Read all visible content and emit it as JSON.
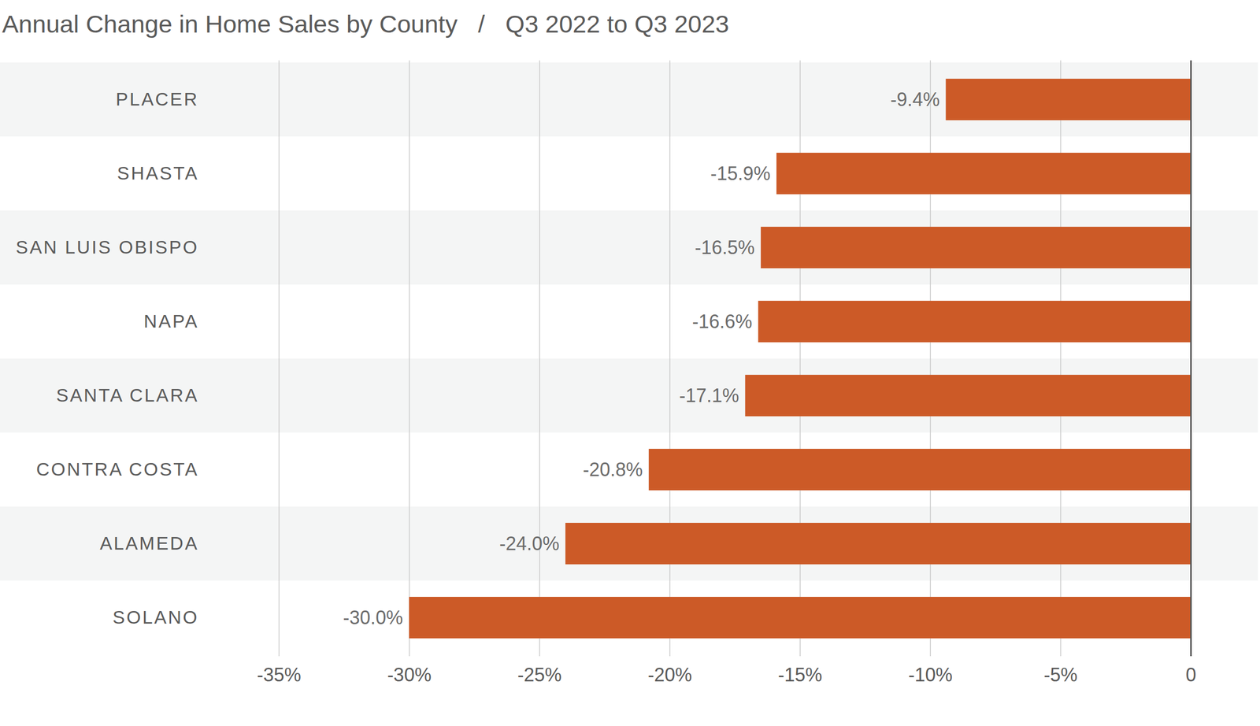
{
  "chart_data": {
    "type": "bar",
    "orientation": "horizontal",
    "title": "Annual Change in Home Sales by County   /   Q3 2022 to Q3 2023",
    "categories": [
      "PLACER",
      "SHASTA",
      "SAN LUIS OBISPO",
      "NAPA",
      "SANTA CLARA",
      "CONTRA COSTA",
      "ALAMEDA",
      "SOLANO"
    ],
    "values": [
      -9.4,
      -15.9,
      -16.5,
      -16.6,
      -17.1,
      -20.8,
      -24.0,
      -30.0
    ],
    "value_labels": [
      "-9.4%",
      "-15.9%",
      "-16.5%",
      "-16.6%",
      "-17.1%",
      "-20.8%",
      "-24.0%",
      "-30.0%"
    ],
    "color": "#cc5a27",
    "xlim": [
      -35,
      0
    ],
    "xticks": [
      {
        "value": -35,
        "label": "-35%"
      },
      {
        "value": -30,
        "label": "-30%"
      },
      {
        "value": -25,
        "label": "-25%"
      },
      {
        "value": -20,
        "label": "-20%"
      },
      {
        "value": -15,
        "label": "-15%"
      },
      {
        "value": -10,
        "label": "-10%"
      },
      {
        "value": -5,
        "label": "-5%"
      },
      0
    ],
    "grid": true,
    "data_labels": true
  }
}
